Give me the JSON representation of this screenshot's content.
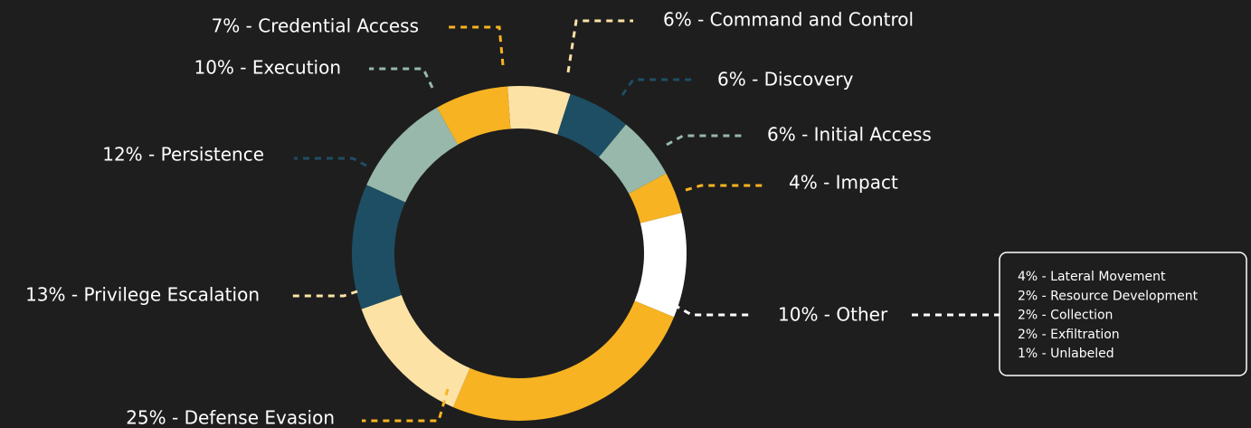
{
  "chart_data": {
    "type": "donut",
    "value_labels": [
      "6% - Command and Control",
      "6% - Discovery",
      "6% - Initial Access",
      "4% - Impact",
      "10% - Other",
      "25% - Defense Evasion",
      "13% - Privilege Escalation",
      "12% - Persistence",
      "10% - Execution",
      "7% - Credential Access"
    ],
    "values": [
      6,
      6,
      6,
      4,
      10,
      25,
      13,
      12,
      10,
      7
    ],
    "colors": [
      "#fde2a6",
      "#1d4e63",
      "#97b8aa",
      "#f7b322",
      "#ffffff",
      "#f7b322",
      "#fde2a6",
      "#1d4e63",
      "#97b8aa",
      "#f7b322"
    ],
    "other_breakdown": [
      "4% - Lateral Movement",
      "2% - Resource Development",
      "2% - Collection",
      "2% - Exfiltration",
      "1% - Unlabeled"
    ]
  }
}
